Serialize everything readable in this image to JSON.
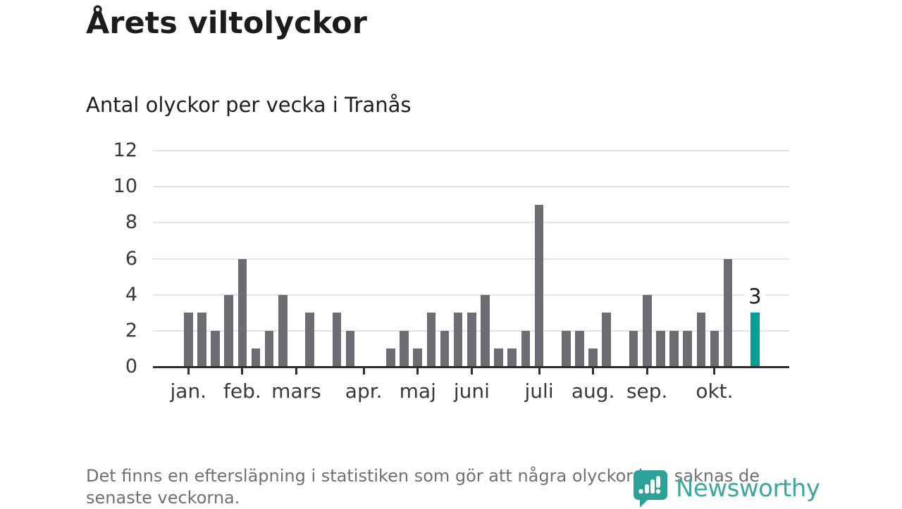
{
  "header": {
    "title": "Årets viltolyckor",
    "subtitle": "Antal olyckor per vecka i Tranås"
  },
  "chart_data": {
    "type": "bar",
    "title": "Årets viltolyckor",
    "subtitle": "Antal olyckor per vecka i Tranås",
    "x_unit": "vecka",
    "values": [
      3,
      3,
      2,
      4,
      6,
      1,
      2,
      4,
      0,
      3,
      0,
      3,
      2,
      0,
      0,
      1,
      2,
      1,
      3,
      2,
      3,
      3,
      4,
      1,
      1,
      2,
      9,
      0,
      2,
      2,
      1,
      3,
      0,
      2,
      4,
      2,
      2,
      2,
      3,
      2,
      6,
      0,
      3
    ],
    "highlight_index": 42,
    "highlight_label": "3",
    "yticks": [
      0,
      2,
      4,
      6,
      8,
      10,
      12
    ],
    "ylim": [
      0,
      12
    ],
    "grid": true,
    "xticks": [
      {
        "label": "jan.",
        "week_index": 0
      },
      {
        "label": "feb.",
        "week_index": 4
      },
      {
        "label": "mars",
        "week_index": 8
      },
      {
        "label": "apr.",
        "week_index": 13
      },
      {
        "label": "maj",
        "week_index": 17
      },
      {
        "label": "juni",
        "week_index": 21
      },
      {
        "label": "juli",
        "week_index": 26
      },
      {
        "label": "aug.",
        "week_index": 30
      },
      {
        "label": "sep.",
        "week_index": 34
      },
      {
        "label": "okt.",
        "week_index": 39
      }
    ],
    "colors": {
      "bar": "#6f6b73",
      "highlight": "#00a097",
      "grid": "#e4e4e4",
      "axis": "#2e2e2e",
      "label": "#383838"
    }
  },
  "footer": {
    "note": "Det finns en eftersläpning i statistiken som gör att några olyckor kan saknas de senaste veckorna.",
    "logo_text": "Newsworthy",
    "logo_color": "#3ea69f"
  }
}
